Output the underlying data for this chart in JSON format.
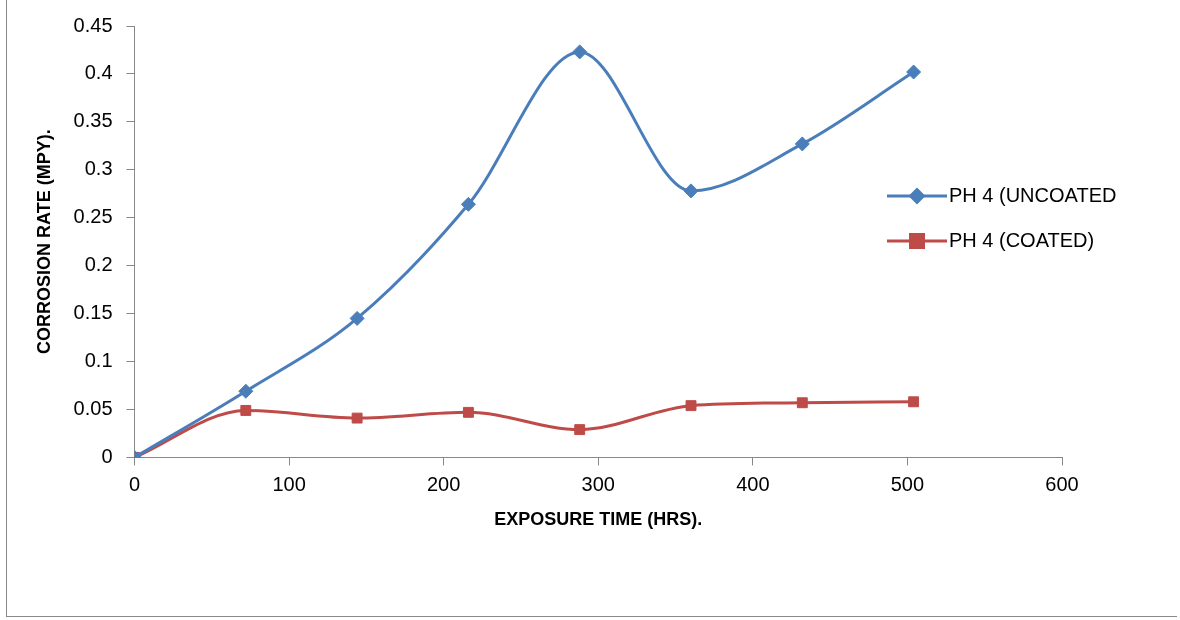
{
  "chart_data": {
    "type": "line",
    "xlabel": "EXPOSURE TIME (HRS).",
    "ylabel": "CORROSION RATE (MPY).",
    "x": [
      0,
      72,
      144,
      216,
      288,
      360,
      432,
      504
    ],
    "xlim": [
      0,
      600
    ],
    "xticks": [
      0,
      100,
      200,
      300,
      400,
      500,
      600
    ],
    "ylim": [
      0,
      0.45
    ],
    "yticks": [
      0,
      0.05,
      0.1,
      0.15,
      0.2,
      0.25,
      0.3,
      0.35,
      0.4,
      0.45
    ],
    "grid": false,
    "legend": "right",
    "line_style": "solid",
    "series": [
      {
        "name": "PH 4 (UNCOATED",
        "color": "#4a7ebb",
        "marker": "diamond",
        "values": [
          0,
          0.069,
          0.145,
          0.264,
          0.423,
          0.278,
          0.327,
          0.402
        ]
      },
      {
        "name": "PH 4 (COATED)",
        "color": "#be4b48",
        "marker": "square",
        "values": [
          0,
          0.049,
          0.041,
          0.047,
          0.029,
          0.054,
          0.057,
          0.058
        ]
      }
    ]
  }
}
